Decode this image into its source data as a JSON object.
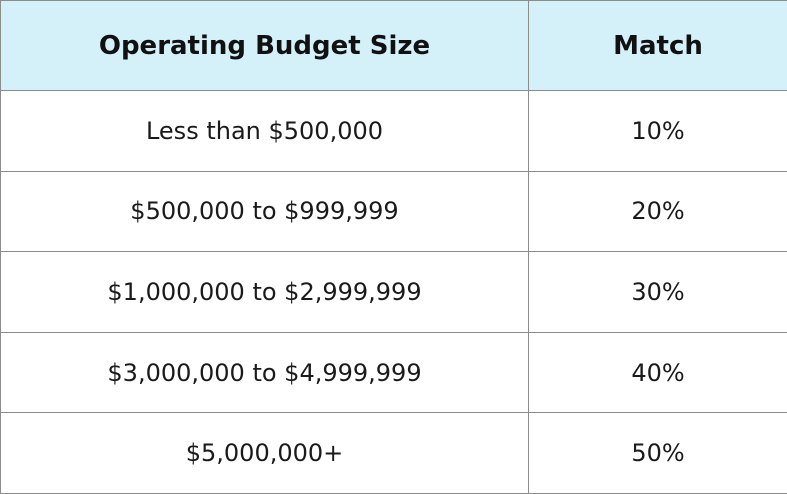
{
  "table": {
    "headers": [
      "Operating Budget Size",
      "Match"
    ],
    "rows": [
      [
        "Less than $500,000",
        "10%"
      ],
      [
        "$500,000 to $999,999",
        "20%"
      ],
      [
        "$1,000,000 to $2,999,999",
        "30%"
      ],
      [
        "$3,000,000 to $4,999,999",
        "40%"
      ],
      [
        "$5,000,000+",
        "50%"
      ]
    ],
    "header_bg": "#d4f0f9",
    "border_color": "#8c8c8c"
  }
}
